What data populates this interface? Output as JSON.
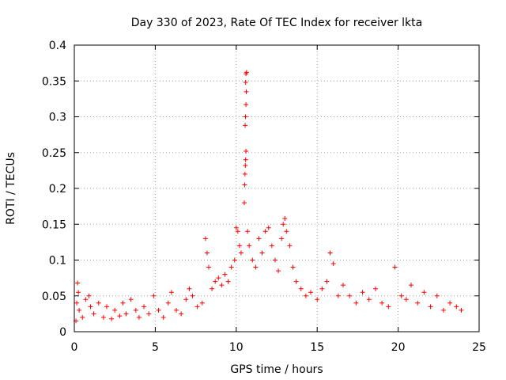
{
  "chart_data": {
    "type": "scatter",
    "title": "Day 330 of 2023, Rate Of TEC Index for receiver lkta",
    "xlabel": "GPS time / hours",
    "ylabel": "ROTI / TECUs",
    "xlim": [
      0,
      25
    ],
    "ylim": [
      0,
      0.4
    ],
    "x_ticks": [
      "0",
      "5",
      "10",
      "15",
      "20",
      "25"
    ],
    "y_ticks": [
      "0",
      "0.05",
      "0.1",
      "0.15",
      "0.2",
      "0.25",
      "0.3",
      "0.35",
      "0.4"
    ],
    "grid": true,
    "marker": "+",
    "colors": {
      "series": "#ff0000",
      "axis": "#000000",
      "grid": "#a0a0a0"
    },
    "series": [
      {
        "name": "ROTI",
        "points": [
          [
            0.1,
            0.015
          ],
          [
            0.15,
            0.04
          ],
          [
            0.2,
            0.068
          ],
          [
            0.25,
            0.055
          ],
          [
            0.3,
            0.03
          ],
          [
            0.5,
            0.02
          ],
          [
            0.7,
            0.045
          ],
          [
            0.9,
            0.05
          ],
          [
            1.0,
            0.035
          ],
          [
            1.2,
            0.025
          ],
          [
            1.5,
            0.04
          ],
          [
            1.8,
            0.02
          ],
          [
            2.0,
            0.035
          ],
          [
            2.3,
            0.018
          ],
          [
            2.5,
            0.03
          ],
          [
            2.8,
            0.022
          ],
          [
            3.0,
            0.04
          ],
          [
            3.2,
            0.025
          ],
          [
            3.5,
            0.045
          ],
          [
            3.8,
            0.03
          ],
          [
            4.0,
            0.02
          ],
          [
            4.3,
            0.035
          ],
          [
            4.6,
            0.025
          ],
          [
            4.9,
            0.05
          ],
          [
            5.2,
            0.03
          ],
          [
            5.5,
            0.02
          ],
          [
            5.8,
            0.04
          ],
          [
            6.0,
            0.055
          ],
          [
            6.3,
            0.03
          ],
          [
            6.6,
            0.025
          ],
          [
            6.9,
            0.045
          ],
          [
            7.1,
            0.06
          ],
          [
            7.3,
            0.05
          ],
          [
            7.6,
            0.035
          ],
          [
            7.9,
            0.04
          ],
          [
            8.1,
            0.13
          ],
          [
            8.2,
            0.11
          ],
          [
            8.3,
            0.09
          ],
          [
            8.5,
            0.06
          ],
          [
            8.7,
            0.07
          ],
          [
            8.9,
            0.075
          ],
          [
            9.1,
            0.065
          ],
          [
            9.3,
            0.08
          ],
          [
            9.5,
            0.07
          ],
          [
            9.7,
            0.09
          ],
          [
            9.9,
            0.1
          ],
          [
            10.0,
            0.145
          ],
          [
            10.1,
            0.14
          ],
          [
            10.2,
            0.12
          ],
          [
            10.3,
            0.11
          ],
          [
            10.5,
            0.18
          ],
          [
            10.52,
            0.205
          ],
          [
            10.54,
            0.22
          ],
          [
            10.56,
            0.232
          ],
          [
            10.58,
            0.24
          ],
          [
            10.6,
            0.252
          ],
          [
            10.55,
            0.288
          ],
          [
            10.57,
            0.3
          ],
          [
            10.6,
            0.317
          ],
          [
            10.62,
            0.335
          ],
          [
            10.58,
            0.348
          ],
          [
            10.6,
            0.36
          ],
          [
            10.64,
            0.362
          ],
          [
            10.7,
            0.14
          ],
          [
            10.8,
            0.12
          ],
          [
            11.0,
            0.1
          ],
          [
            11.2,
            0.09
          ],
          [
            11.4,
            0.13
          ],
          [
            11.6,
            0.11
          ],
          [
            11.8,
            0.14
          ],
          [
            12.0,
            0.145
          ],
          [
            12.2,
            0.12
          ],
          [
            12.4,
            0.1
          ],
          [
            12.6,
            0.085
          ],
          [
            12.8,
            0.13
          ],
          [
            12.9,
            0.15
          ],
          [
            13.0,
            0.158
          ],
          [
            13.1,
            0.14
          ],
          [
            13.3,
            0.12
          ],
          [
            13.5,
            0.09
          ],
          [
            13.7,
            0.07
          ],
          [
            14.0,
            0.06
          ],
          [
            14.3,
            0.05
          ],
          [
            14.6,
            0.055
          ],
          [
            15.0,
            0.045
          ],
          [
            15.3,
            0.06
          ],
          [
            15.6,
            0.07
          ],
          [
            15.8,
            0.11
          ],
          [
            16.0,
            0.095
          ],
          [
            16.3,
            0.05
          ],
          [
            16.6,
            0.065
          ],
          [
            17.0,
            0.05
          ],
          [
            17.4,
            0.04
          ],
          [
            17.8,
            0.055
          ],
          [
            18.2,
            0.045
          ],
          [
            18.6,
            0.06
          ],
          [
            19.0,
            0.04
          ],
          [
            19.4,
            0.035
          ],
          [
            19.8,
            0.09
          ],
          [
            20.2,
            0.05
          ],
          [
            20.5,
            0.045
          ],
          [
            20.8,
            0.065
          ],
          [
            21.2,
            0.04
          ],
          [
            21.6,
            0.055
          ],
          [
            22.0,
            0.035
          ],
          [
            22.4,
            0.05
          ],
          [
            22.8,
            0.03
          ],
          [
            23.2,
            0.04
          ],
          [
            23.6,
            0.035
          ],
          [
            23.9,
            0.03
          ]
        ]
      }
    ]
  }
}
